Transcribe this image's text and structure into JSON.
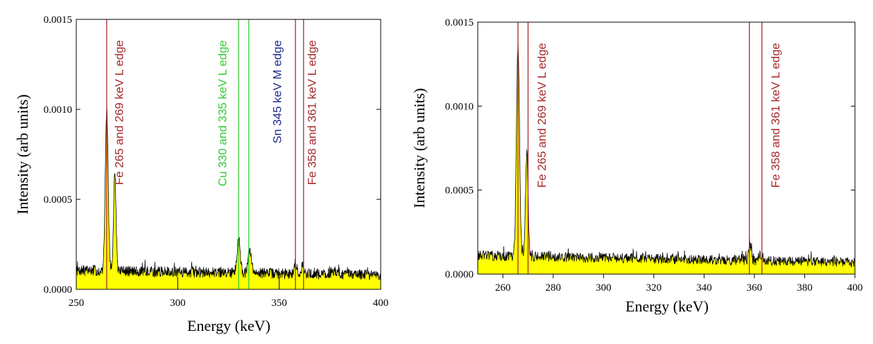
{
  "chart_data": [
    {
      "type": "area",
      "xlabel": "Energy (keV)",
      "ylabel": "Intensity (arb units)",
      "xlim": [
        250,
        400
      ],
      "ylim": [
        0,
        0.0015
      ],
      "xticks": [
        250,
        300,
        350,
        400
      ],
      "xtick_labels": [
        "250",
        "300",
        "350",
        "400"
      ],
      "yticks": [
        0,
        0.0005,
        0.001,
        0.0015
      ],
      "ytick_labels": [
        "0.0000",
        "0.0005",
        "0.0010",
        "0.0015"
      ],
      "grid": false,
      "fill_color": "#ffff00",
      "line_color": "#000000",
      "baseline": {
        "start": 0.000105,
        "end": 8e-05
      },
      "peaks": [
        {
          "x": 265.0,
          "height": 0.00089,
          "width": 0.7
        },
        {
          "x": 269.0,
          "height": 0.00055,
          "width": 0.6
        },
        {
          "x": 330.0,
          "height": 0.00018,
          "width": 0.8
        },
        {
          "x": 335.5,
          "height": 0.00012,
          "width": 0.8
        },
        {
          "x": 358.0,
          "height": 6e-05,
          "width": 0.6
        },
        {
          "x": 361.5,
          "height": 5e-05,
          "width": 0.6
        },
        {
          "x": 377.0,
          "height": 2e-05,
          "width": 1.5
        }
      ],
      "markers": [
        {
          "x": 265,
          "color": "#a52a2a"
        },
        {
          "x": 330,
          "color": "#33cc33"
        },
        {
          "x": 335,
          "color": "#33cc33"
        },
        {
          "x": 358,
          "color": "#a52a2a"
        },
        {
          "x": 362,
          "color": "#a52a2a"
        }
      ],
      "annotations": [
        {
          "text": "Fe 265 and 269 keV L edge",
          "x": 273,
          "color": "#a52a2a"
        },
        {
          "text": "Cu 330 and 335 keV L edge",
          "x": 324,
          "color": "#33cc33"
        },
        {
          "text": "Sn 345 keV M edge",
          "x": 351,
          "color": "#1f2a8c"
        },
        {
          "text": "Fe 358 and 361 keV L edge",
          "x": 368,
          "color": "#a52a2a"
        }
      ]
    },
    {
      "type": "area",
      "xlabel": "Energy (keV)",
      "ylabel": "Intensity (arb units)",
      "xlim": [
        250,
        400
      ],
      "ylim": [
        0,
        0.0015
      ],
      "xticks": [
        260,
        280,
        300,
        320,
        340,
        360,
        380,
        400
      ],
      "xtick_labels": [
        "260",
        "280",
        "300",
        "320",
        "340",
        "360",
        "380",
        "400"
      ],
      "yticks": [
        0,
        0.0005,
        0.001,
        0.0015
      ],
      "ytick_labels": [
        "0.0000",
        "0.0005",
        "0.0010",
        "0.0015"
      ],
      "grid": false,
      "fill_color": "#ffff00",
      "line_color": "#000000",
      "baseline": {
        "start": 0.00011,
        "end": 7e-05
      },
      "peaks": [
        {
          "x": 266.0,
          "height": 0.00125,
          "width": 0.6
        },
        {
          "x": 269.5,
          "height": 0.00062,
          "width": 0.5
        },
        {
          "x": 358.3,
          "height": 9e-05,
          "width": 0.5
        },
        {
          "x": 362.3,
          "height": 4e-05,
          "width": 0.5
        }
      ],
      "markers": [
        {
          "x": 266,
          "color": "#a52a2a"
        },
        {
          "x": 270,
          "color": "#a52a2a"
        },
        {
          "x": 358,
          "color": "#a52a2a"
        },
        {
          "x": 363,
          "color": "#a52a2a"
        }
      ],
      "annotations": [
        {
          "text": "Fe 265 and 269 keV L edge",
          "x": 277,
          "color": "#a52a2a"
        },
        {
          "text": "Fe 358 and 361 keV L edge",
          "x": 370,
          "color": "#a52a2a"
        }
      ]
    }
  ]
}
